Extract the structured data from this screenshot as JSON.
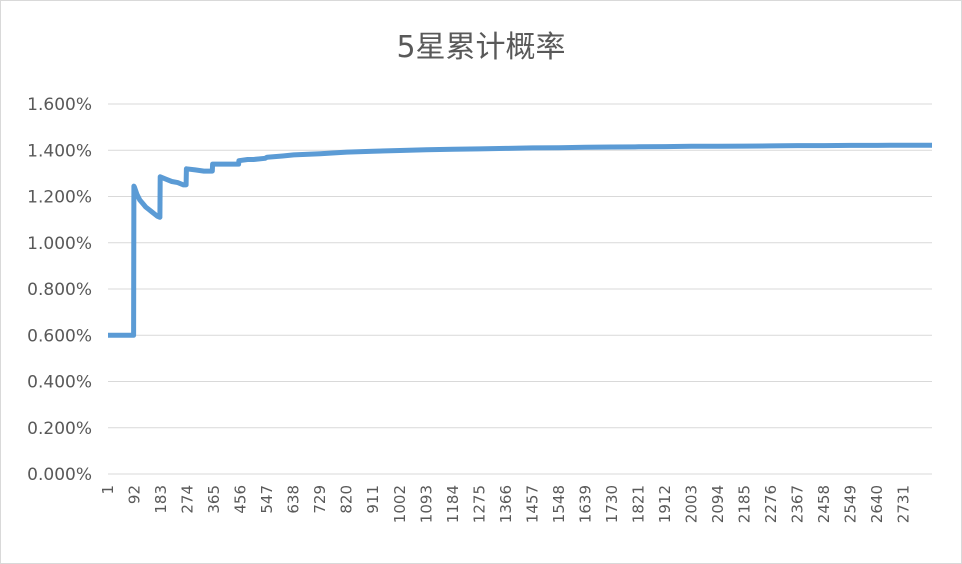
{
  "chart_data": {
    "type": "line",
    "title": "5星累计概率",
    "xlabel": "",
    "ylabel": "",
    "ylim": [
      0,
      0.016
    ],
    "y_ticks": [
      "0.000%",
      "0.200%",
      "0.400%",
      "0.600%",
      "0.800%",
      "1.000%",
      "1.200%",
      "1.400%",
      "1.600%"
    ],
    "x_ticks": [
      "1",
      "92",
      "183",
      "274",
      "365",
      "456",
      "547",
      "638",
      "729",
      "820",
      "911",
      "1002",
      "1093",
      "1184",
      "1275",
      "1366",
      "1457",
      "1548",
      "1639",
      "1730",
      "1821",
      "1912",
      "2003",
      "2094",
      "2185",
      "2276",
      "2367",
      "2458",
      "2549",
      "2640",
      "2731"
    ],
    "xlim": [
      1,
      2828
    ],
    "grid": true,
    "legend": "none",
    "line_color": "#5b9bd5",
    "series": [
      {
        "x": [
          1,
          89,
          90,
          92,
          100,
          110,
          120,
          130,
          140,
          150,
          160,
          170,
          179,
          180,
          200,
          220,
          240,
          260,
          269,
          270,
          300,
          330,
          359,
          360,
          400,
          449,
          450,
          480,
          500,
          540,
          547,
          600,
          638,
          729,
          820,
          911,
          1002,
          1093,
          1184,
          1275,
          1366,
          1457,
          1548,
          1639,
          1730,
          1821,
          1912,
          2003,
          2094,
          2185,
          2276,
          2367,
          2458,
          2549,
          2640,
          2731,
          2828
        ],
        "y": [
          0.006,
          0.006,
          0.01245,
          0.0124,
          0.0121,
          0.01185,
          0.0117,
          0.01155,
          0.01145,
          0.01135,
          0.01125,
          0.01115,
          0.0111,
          0.01285,
          0.01275,
          0.01265,
          0.0126,
          0.0125,
          0.0125,
          0.0132,
          0.01315,
          0.0131,
          0.0131,
          0.0134,
          0.0134,
          0.0134,
          0.01355,
          0.0136,
          0.0136,
          0.01365,
          0.0137,
          0.01375,
          0.0138,
          0.01385,
          0.01392,
          0.01396,
          0.01399,
          0.01402,
          0.01404,
          0.01406,
          0.01408,
          0.0141,
          0.01411,
          0.01413,
          0.01414,
          0.01415,
          0.01416,
          0.01417,
          0.01417,
          0.01418,
          0.01419,
          0.0142,
          0.0142,
          0.01421,
          0.01421,
          0.01422,
          0.01422
        ]
      }
    ]
  }
}
